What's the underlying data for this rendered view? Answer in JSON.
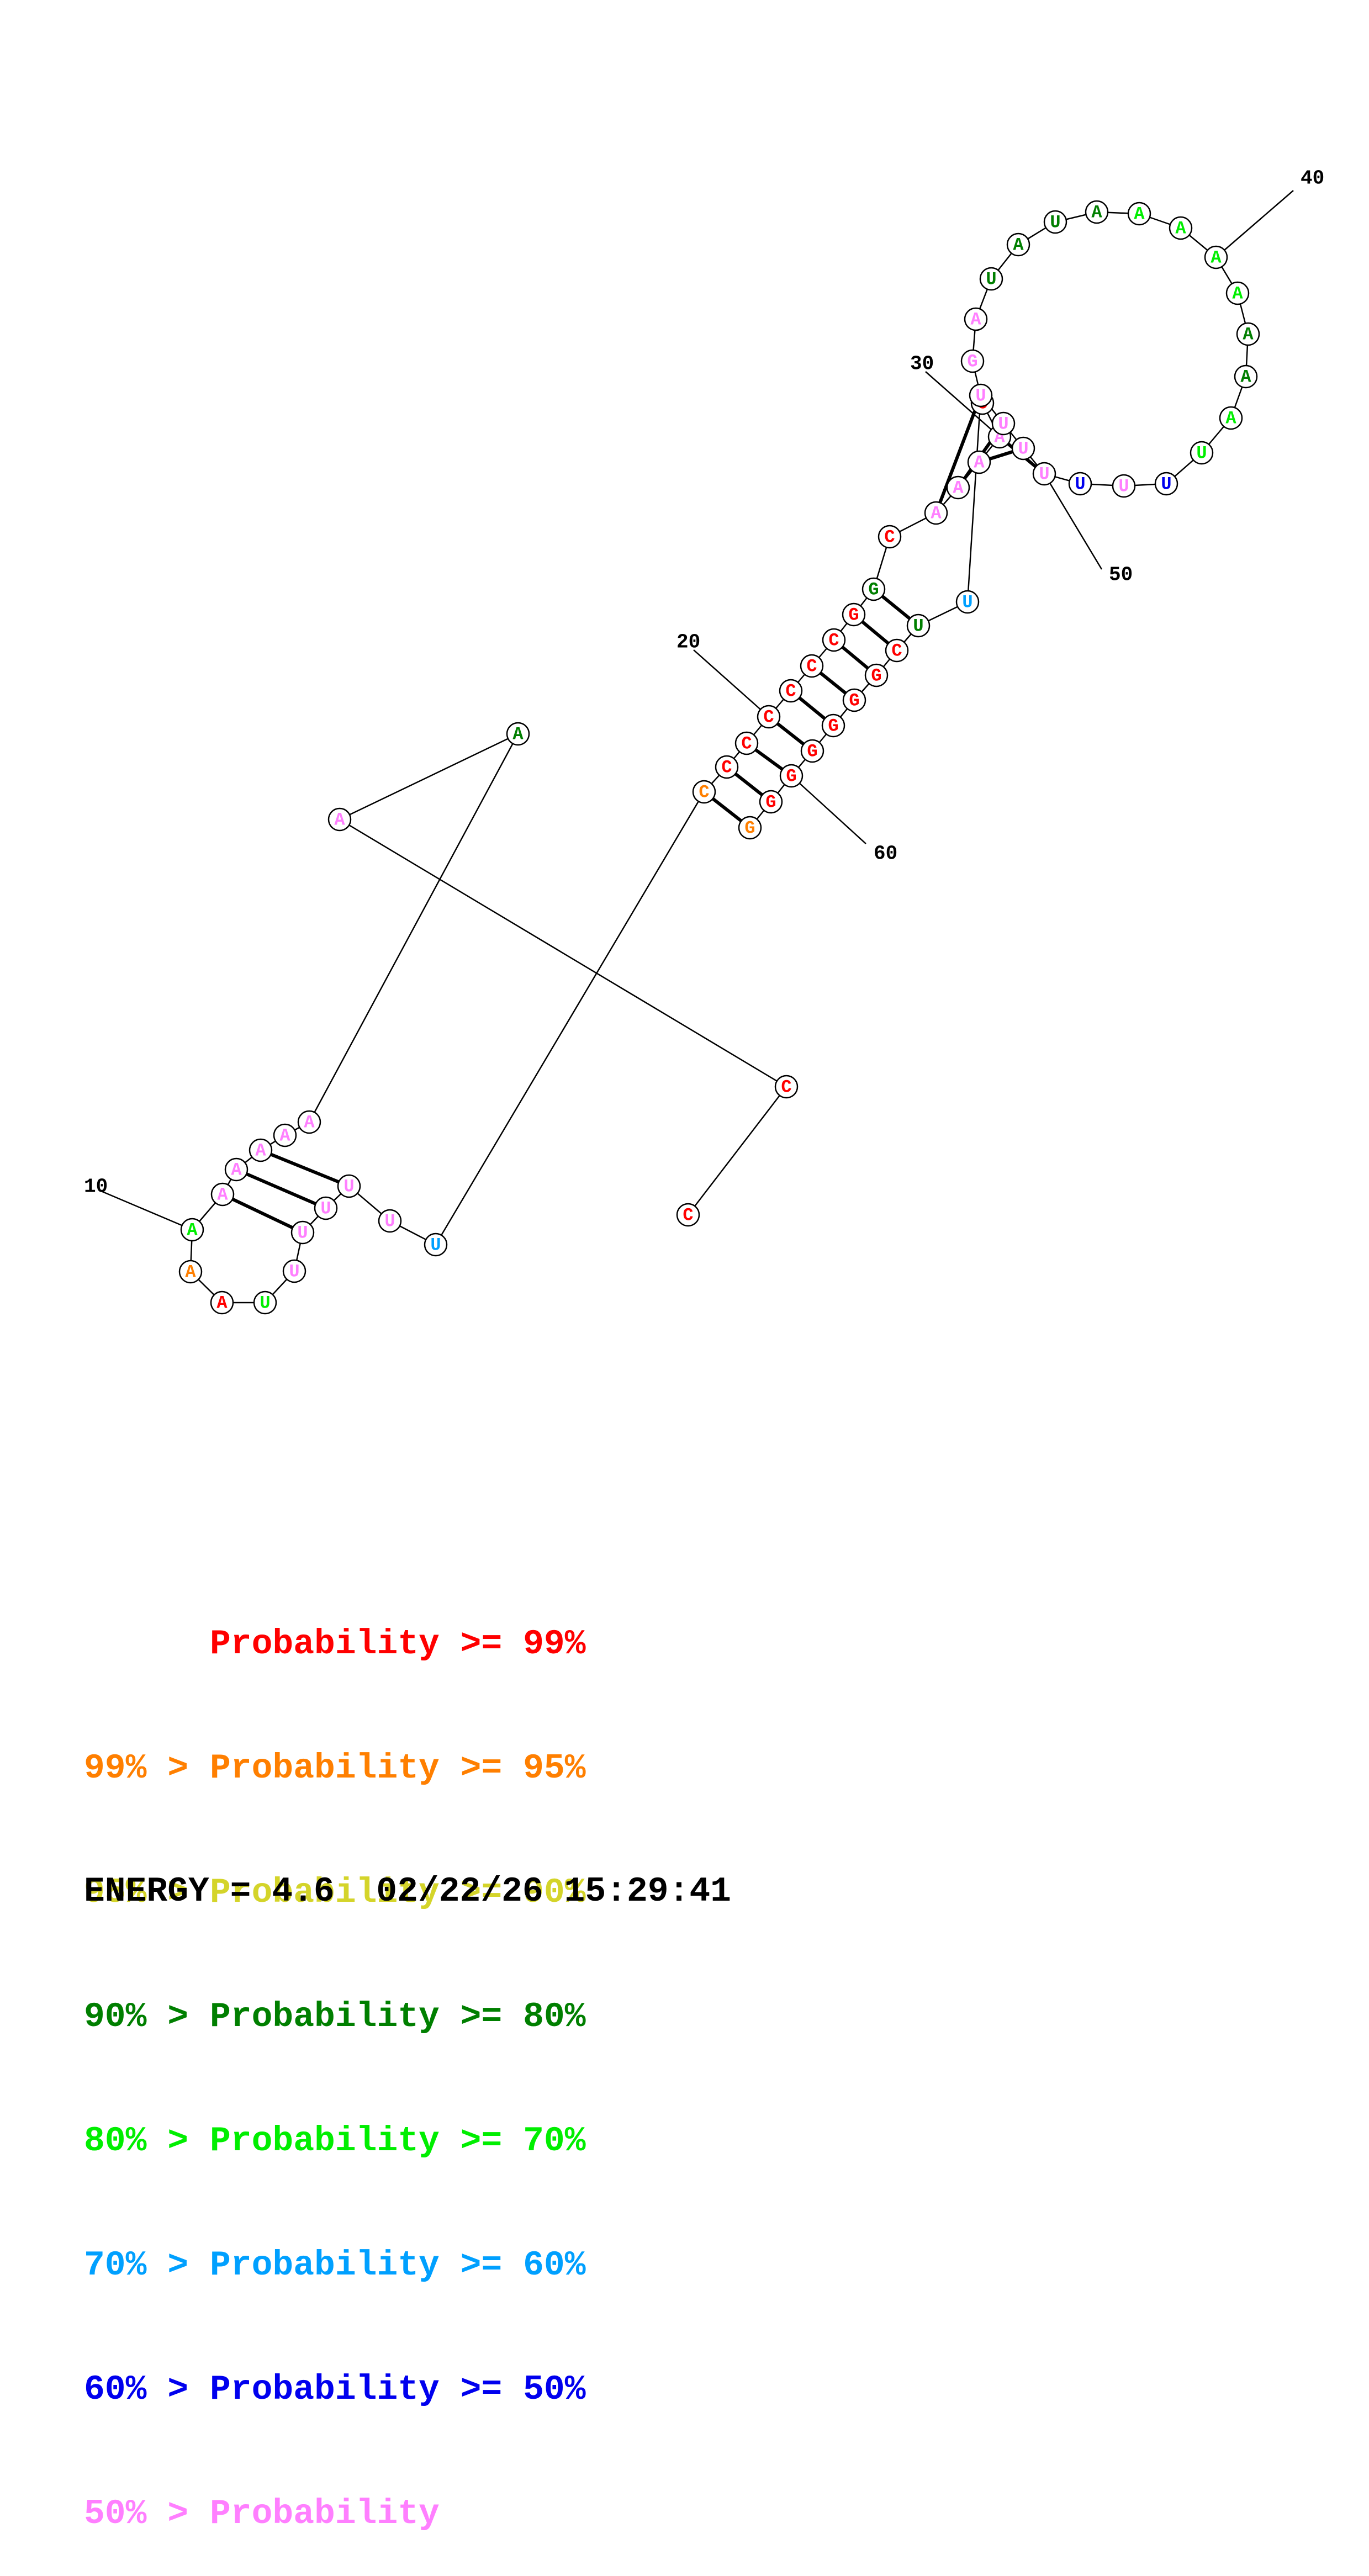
{
  "colors": {
    "p99": "#ff0000",
    "p95": "#ff7f00",
    "p90": "#d4d42a",
    "p80": "#007f00",
    "p70": "#00ee00",
    "p60": "#00a0ff",
    "p50": "#0000ee",
    "plow": "#ff7fff",
    "ink": "#000000"
  },
  "structure": {
    "nucleotides": [
      {
        "n": 1,
        "base": "C",
        "color": "p99"
      },
      {
        "n": 2,
        "base": "C",
        "color": "p99"
      },
      {
        "n": 3,
        "base": "A",
        "color": "plow"
      },
      {
        "n": 4,
        "base": "A",
        "color": "p80"
      },
      {
        "n": 5,
        "base": "A",
        "color": "plow"
      },
      {
        "n": 6,
        "base": "A",
        "color": "plow"
      },
      {
        "n": 7,
        "base": "A",
        "color": "plow"
      },
      {
        "n": 8,
        "base": "A",
        "color": "plow"
      },
      {
        "n": 9,
        "base": "A",
        "color": "plow"
      },
      {
        "n": 10,
        "base": "A",
        "color": "p70"
      },
      {
        "n": 11,
        "base": "A",
        "color": "p95"
      },
      {
        "n": 12,
        "base": "A",
        "color": "p99"
      },
      {
        "n": 13,
        "base": "U",
        "color": "p70"
      },
      {
        "n": 14,
        "base": "U",
        "color": "plow"
      },
      {
        "n": 15,
        "base": "U",
        "color": "plow"
      },
      {
        "n": 16,
        "base": "U",
        "color": "plow"
      },
      {
        "n": 17,
        "base": "U",
        "color": "plow"
      },
      {
        "n": 18,
        "base": "U",
        "color": "plow"
      },
      {
        "n": 19,
        "base": "U",
        "color": "p60"
      },
      {
        "n": 20,
        "base": "C",
        "color": "p95"
      },
      {
        "n": 21,
        "base": "C",
        "color": "p99"
      },
      {
        "n": 22,
        "base": "C",
        "color": "p99"
      },
      {
        "n": 23,
        "base": "C",
        "color": "p99"
      },
      {
        "n": 24,
        "base": "C",
        "color": "p99"
      },
      {
        "n": 25,
        "base": "C",
        "color": "p99"
      },
      {
        "n": 26,
        "base": "C",
        "color": "p99"
      },
      {
        "n": 27,
        "base": "G",
        "color": "p99"
      },
      {
        "n": 28,
        "base": "G",
        "color": "p80"
      },
      {
        "n": 29,
        "base": "C",
        "color": "p99"
      },
      {
        "n": 30,
        "base": "A",
        "color": "plow"
      },
      {
        "n": 31,
        "base": "A",
        "color": "plow"
      },
      {
        "n": 32,
        "base": "A",
        "color": "plow"
      },
      {
        "n": 33,
        "base": "A",
        "color": "plow"
      },
      {
        "n": 34,
        "base": "C",
        "color": "p99"
      },
      {
        "n": 35,
        "base": "G",
        "color": "plow"
      },
      {
        "n": 36,
        "base": "A",
        "color": "plow"
      },
      {
        "n": 37,
        "base": "U",
        "color": "p80"
      },
      {
        "n": 38,
        "base": "A",
        "color": "p80"
      },
      {
        "n": 39,
        "base": "U",
        "color": "p80"
      },
      {
        "n": 40,
        "base": "A",
        "color": "p80"
      },
      {
        "n": 41,
        "base": "A",
        "color": "p70"
      },
      {
        "n": 42,
        "base": "A",
        "color": "p70"
      },
      {
        "n": 43,
        "base": "A",
        "color": "p70"
      },
      {
        "n": 44,
        "base": "A",
        "color": "p70"
      },
      {
        "n": 45,
        "base": "A",
        "color": "p80"
      },
      {
        "n": 46,
        "base": "A",
        "color": "p80"
      },
      {
        "n": 47,
        "base": "A",
        "color": "p70"
      },
      {
        "n": 48,
        "base": "U",
        "color": "p70"
      },
      {
        "n": 49,
        "base": "U",
        "color": "p50"
      },
      {
        "n": 50,
        "base": "U",
        "color": "plow"
      },
      {
        "n": 51,
        "base": "U",
        "color": "p50"
      },
      {
        "n": 52,
        "base": "U",
        "color": "plow"
      },
      {
        "n": 53,
        "base": "U",
        "color": "plow"
      },
      {
        "n": 54,
        "base": "U",
        "color": "plow"
      },
      {
        "n": 55,
        "base": "U",
        "color": "plow"
      },
      {
        "n": 56,
        "base": "U",
        "color": "p60"
      },
      {
        "n": 57,
        "base": "U",
        "color": "p80"
      },
      {
        "n": 58,
        "base": "C",
        "color": "p99"
      },
      {
        "n": 59,
        "base": "G",
        "color": "p99"
      },
      {
        "n": 60,
        "base": "G",
        "color": "p99"
      },
      {
        "n": 61,
        "base": "G",
        "color": "p99"
      },
      {
        "n": 62,
        "base": "G",
        "color": "p99"
      },
      {
        "n": 63,
        "base": "G",
        "color": "p99"
      },
      {
        "n": 64,
        "base": "G",
        "color": "p99"
      },
      {
        "n": 65,
        "base": "G",
        "color": "p95"
      }
    ],
    "pairs": [
      [
        7,
        17
      ],
      [
        8,
        16
      ],
      [
        9,
        15
      ],
      [
        20,
        65
      ],
      [
        21,
        64
      ],
      [
        22,
        63
      ],
      [
        23,
        62
      ],
      [
        24,
        61
      ],
      [
        25,
        60
      ],
      [
        26,
        59
      ],
      [
        27,
        58
      ],
      [
        28,
        57
      ],
      [
        30,
        55
      ],
      [
        31,
        54
      ],
      [
        32,
        53
      ],
      [
        33,
        52
      ]
    ],
    "position_numbers": [
      "10",
      "20",
      "30",
      "40",
      "50",
      "60"
    ]
  },
  "legend": [
    {
      "prefix": "",
      "label": "Probability >= 99%",
      "color": "p99"
    },
    {
      "prefix": "99% > ",
      "label": "Probability >= 95%",
      "color": "p95"
    },
    {
      "prefix": "95% > ",
      "label": "Probability >= 90%",
      "color": "p90"
    },
    {
      "prefix": "90% > ",
      "label": "Probability >= 80%",
      "color": "p80"
    },
    {
      "prefix": "80% > ",
      "label": "Probability >= 70%",
      "color": "p70"
    },
    {
      "prefix": "70% > ",
      "label": "Probability >= 60%",
      "color": "p60"
    },
    {
      "prefix": "60% > ",
      "label": "Probability >= 50%",
      "color": "p50"
    },
    {
      "prefix": "50% > ",
      "label": "Probability",
      "color": "plow"
    }
  ],
  "energy": {
    "text": "ENERGY = 4.6  02/22/26 15:29:41"
  }
}
